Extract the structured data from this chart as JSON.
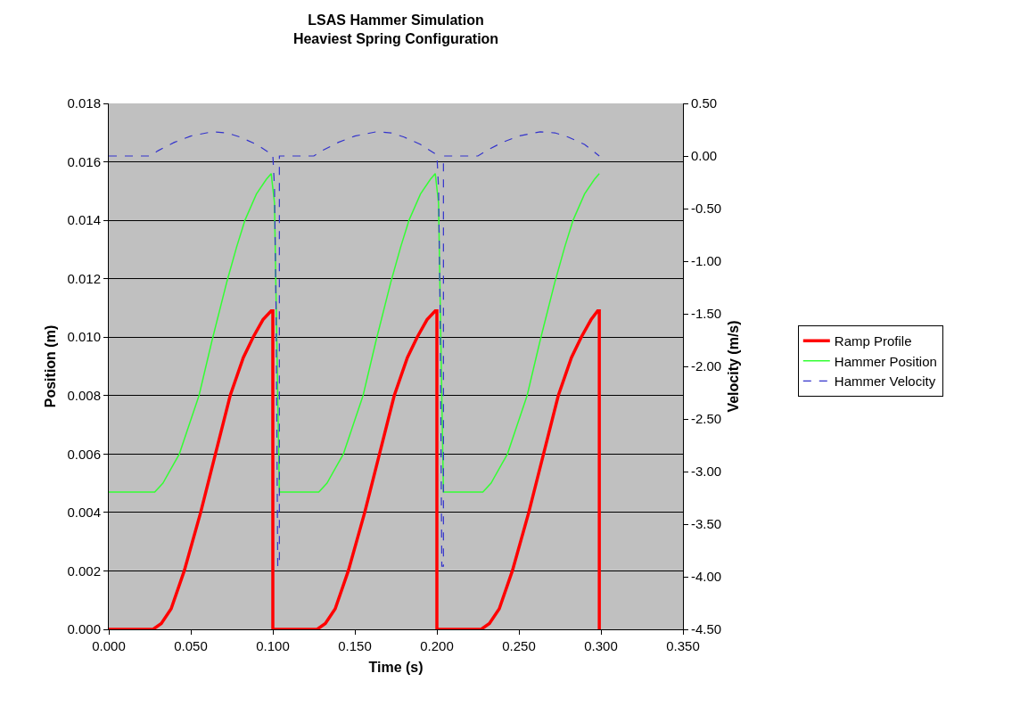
{
  "chart_data": {
    "type": "line",
    "title": "LSAS Hammer Simulation\nHeaviest Spring Configuration",
    "xlabel": "Time (s)",
    "ylabel": "Position (m)",
    "y2label": "Velocity (m/s)",
    "xlim": [
      0,
      0.35
    ],
    "xticks": [
      {
        "value": 0,
        "label": "0.000"
      },
      {
        "value": 0.05,
        "label": "0.050"
      },
      {
        "value": 0.1,
        "label": "0.100"
      },
      {
        "value": 0.15,
        "label": "0.150"
      },
      {
        "value": 0.2,
        "label": "0.200"
      },
      {
        "value": 0.25,
        "label": "0.250"
      },
      {
        "value": 0.3,
        "label": "0.300"
      },
      {
        "value": 0.35,
        "label": "0.350"
      }
    ],
    "ylim": [
      0,
      0.018
    ],
    "yticks": [
      {
        "value": 0,
        "label": "0.000"
      },
      {
        "value": 0.002,
        "label": "0.002"
      },
      {
        "value": 0.004,
        "label": "0.004"
      },
      {
        "value": 0.006,
        "label": "0.006"
      },
      {
        "value": 0.008,
        "label": "0.008"
      },
      {
        "value": 0.01,
        "label": "0.010"
      },
      {
        "value": 0.012,
        "label": "0.012"
      },
      {
        "value": 0.014,
        "label": "0.014"
      },
      {
        "value": 0.016,
        "label": "0.016"
      },
      {
        "value": 0.018,
        "label": "0.018"
      }
    ],
    "y2lim": [
      -4.5,
      0.5
    ],
    "y2ticks": [
      {
        "value": 0.5,
        "label": "0.50"
      },
      {
        "value": 0,
        "label": "0.00"
      },
      {
        "value": -0.5,
        "label": "-0.50"
      },
      {
        "value": -1,
        "label": "-1.00"
      },
      {
        "value": -1.5,
        "label": "-1.50"
      },
      {
        "value": -2,
        "label": "-2.00"
      },
      {
        "value": -2.5,
        "label": "-2.50"
      },
      {
        "value": -3,
        "label": "-3.00"
      },
      {
        "value": -3.5,
        "label": "-3.50"
      },
      {
        "value": -4,
        "label": "-4.00"
      },
      {
        "value": -4.5,
        "label": "-4.50"
      }
    ],
    "grid": "y",
    "legend": "right",
    "marker": "none",
    "series": [
      {
        "name": "Ramp Profile",
        "color": "#ff0000",
        "line_style": "solid",
        "x": [
          0,
          0.027,
          0.032,
          0.038,
          0.046,
          0.056,
          0.065,
          0.074,
          0.082,
          0.088,
          0.094,
          0.099,
          0.1,
          0.1,
          0.127,
          0.132,
          0.138,
          0.146,
          0.156,
          0.165,
          0.174,
          0.182,
          0.188,
          0.194,
          0.199,
          0.2,
          0.2,
          0.227,
          0.232,
          0.238,
          0.246,
          0.256,
          0.265,
          0.274,
          0.282,
          0.288,
          0.294,
          0.298,
          0.299,
          0.299
        ],
        "values": [
          0,
          0,
          0.0002,
          0.0007,
          0.002,
          0.004,
          0.006,
          0.008,
          0.0093,
          0.01,
          0.0106,
          0.0109,
          0.0109,
          0,
          0,
          0.0002,
          0.0007,
          0.002,
          0.004,
          0.006,
          0.008,
          0.0093,
          0.01,
          0.0106,
          0.0109,
          0.0109,
          0,
          0,
          0.0002,
          0.0007,
          0.002,
          0.004,
          0.006,
          0.008,
          0.0093,
          0.01,
          0.0106,
          0.0109,
          0.0109,
          0
        ]
      },
      {
        "name": "Hammer Position",
        "color": "#33ff33",
        "line_style": "solid",
        "x": [
          0,
          0.028,
          0.033,
          0.038,
          0.043,
          0.049,
          0.055,
          0.063,
          0.072,
          0.078,
          0.083,
          0.09,
          0.096,
          0.099,
          0.101,
          0.104,
          0.128,
          0.133,
          0.138,
          0.143,
          0.149,
          0.155,
          0.163,
          0.172,
          0.178,
          0.183,
          0.19,
          0.196,
          0.199,
          0.201,
          0.204,
          0.228,
          0.233,
          0.238,
          0.243,
          0.249,
          0.255,
          0.263,
          0.272,
          0.278,
          0.283,
          0.29,
          0.296,
          0.299
        ],
        "values": [
          0.0047,
          0.0047,
          0.005,
          0.0055,
          0.006,
          0.007,
          0.008,
          0.0099,
          0.0119,
          0.0131,
          0.014,
          0.0149,
          0.0154,
          0.0156,
          0.0146,
          0.0047,
          0.0047,
          0.005,
          0.0055,
          0.006,
          0.007,
          0.008,
          0.0099,
          0.0119,
          0.0131,
          0.014,
          0.0149,
          0.0154,
          0.0156,
          0.0146,
          0.0047,
          0.0047,
          0.005,
          0.0055,
          0.006,
          0.007,
          0.008,
          0.0099,
          0.0119,
          0.0131,
          0.014,
          0.0149,
          0.0154,
          0.0156
        ]
      },
      {
        "name": "Hammer Velocity",
        "color": "#3333cc",
        "line_style": "dashed",
        "axis": "y2",
        "x": [
          0,
          0.025,
          0.03,
          0.04,
          0.05,
          0.063,
          0.072,
          0.08,
          0.09,
          0.1,
          0.101,
          0.102,
          0.103,
          0.104,
          0.104,
          0.125,
          0.13,
          0.14,
          0.15,
          0.163,
          0.172,
          0.18,
          0.19,
          0.2,
          0.201,
          0.202,
          0.203,
          0.204,
          0.204,
          0.225,
          0.23,
          0.24,
          0.25,
          0.263,
          0.272,
          0.28,
          0.29,
          0.299
        ],
        "values": [
          0,
          0,
          0.05,
          0.13,
          0.19,
          0.23,
          0.22,
          0.18,
          0.11,
          0.01,
          -0.3,
          -1.5,
          -3.9,
          -3.9,
          0,
          0,
          0.05,
          0.13,
          0.19,
          0.23,
          0.22,
          0.18,
          0.11,
          0.01,
          -0.3,
          -1.5,
          -3.9,
          -3.9,
          0,
          0,
          0.05,
          0.13,
          0.19,
          0.23,
          0.22,
          0.18,
          0.11,
          0
        ]
      }
    ]
  }
}
